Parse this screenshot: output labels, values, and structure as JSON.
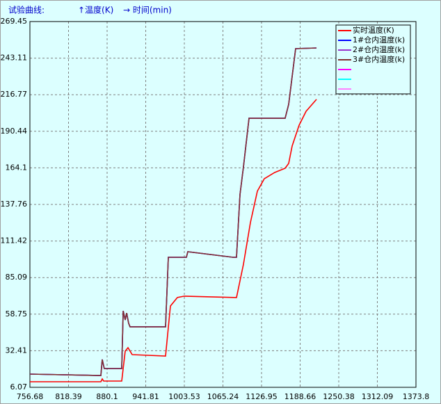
{
  "chart_data": {
    "type": "line",
    "title": "试验曲线:",
    "y_axis_label": "↑温度(K)",
    "x_axis_label": "→ 时间(min)",
    "xlim": [
      756.68,
      1373.8
    ],
    "ylim": [
      6.07,
      269.45
    ],
    "xticks": [
      756.68,
      818.39,
      880.1,
      941.81,
      1003.53,
      1065.24,
      1126.95,
      1188.66,
      1250.38,
      1312.09,
      1373.8
    ],
    "yticks": [
      6.07,
      32.41,
      58.75,
      85.09,
      111.42,
      137.76,
      164.1,
      190.44,
      216.77,
      243.11,
      269.45
    ],
    "grid": true,
    "legend": "upper right",
    "unlabeled_legend_colors": [
      "#ff00ff",
      "#00ffff",
      "#ff80ff"
    ],
    "series": [
      {
        "name": "实时温度(K)",
        "color": "#ff0000",
        "x": [
          756.7,
          870.1,
          872.3,
          874.5,
          903.5,
          909.0,
          913.5,
          920.1,
          973.5,
          981.3,
          992.4,
          1003.5,
          1086.9,
          1098.0,
          1109.2,
          1120.3,
          1131.4,
          1148.1,
          1164.7,
          1170.3,
          1175.9,
          1187.0,
          1198.1,
          1214.8
        ],
        "values": [
          10.1,
          10.1,
          12.1,
          10.6,
          10.6,
          32.1,
          34.6,
          29.6,
          28.6,
          64.6,
          70.7,
          71.7,
          70.7,
          94.7,
          124.7,
          147.3,
          156.3,
          160.8,
          163.8,
          167.3,
          179.8,
          194.8,
          204.8,
          213.4
        ]
      },
      {
        "name": "1#仓内温度(k)",
        "color": "#0000ff",
        "x": [
          756.7,
          870.1,
          872.3,
          875.6,
          903.5,
          905.8,
          909.0,
          911.2,
          914.6,
          916.8,
          973.5,
          978.0,
          1006.9,
          1009.1,
          1081.3,
          1086.9,
          1092.5,
          1098.0,
          1106.9,
          1164.7,
          1170.3,
          1175.9,
          1181.4,
          1214.8
        ],
        "values": [
          15.6,
          14.6,
          26.1,
          19.6,
          19.6,
          61.1,
          54.6,
          59.6,
          52.1,
          49.6,
          49.6,
          99.7,
          99.7,
          103.7,
          99.7,
          99.7,
          144.8,
          164.8,
          199.8,
          199.8,
          209.8,
          229.9,
          249.9,
          250.4
        ]
      },
      {
        "name": "2#仓内温度(k)",
        "color": "#9932cc",
        "x": [
          756.7,
          870.1,
          872.3,
          875.6,
          903.5,
          905.8,
          909.0,
          911.2,
          914.6,
          916.8,
          973.5,
          978.0,
          1006.9,
          1009.1,
          1081.3,
          1086.9,
          1092.5,
          1098.0,
          1106.9,
          1164.7,
          1170.3,
          1175.9,
          1181.4,
          1214.8
        ],
        "values": [
          15.6,
          14.6,
          26.1,
          19.6,
          19.6,
          61.1,
          54.6,
          59.6,
          52.1,
          49.6,
          49.6,
          99.7,
          99.7,
          103.7,
          99.7,
          99.7,
          144.8,
          164.8,
          199.8,
          199.8,
          209.8,
          229.9,
          249.9,
          250.4
        ]
      },
      {
        "name": "3#仓内温度(k)",
        "color": "#803030",
        "x": [
          756.7,
          870.1,
          872.3,
          875.6,
          903.5,
          905.8,
          909.0,
          911.2,
          914.6,
          916.8,
          973.5,
          978.0,
          1006.9,
          1009.1,
          1081.3,
          1086.9,
          1092.5,
          1098.0,
          1106.9,
          1164.7,
          1170.3,
          1175.9,
          1181.4,
          1214.8
        ],
        "values": [
          15.6,
          14.6,
          26.1,
          19.6,
          19.6,
          61.1,
          54.6,
          59.6,
          52.1,
          49.6,
          49.6,
          99.7,
          99.7,
          103.7,
          99.7,
          99.7,
          144.8,
          164.8,
          199.8,
          199.8,
          209.8,
          229.9,
          249.9,
          250.4
        ]
      }
    ]
  }
}
